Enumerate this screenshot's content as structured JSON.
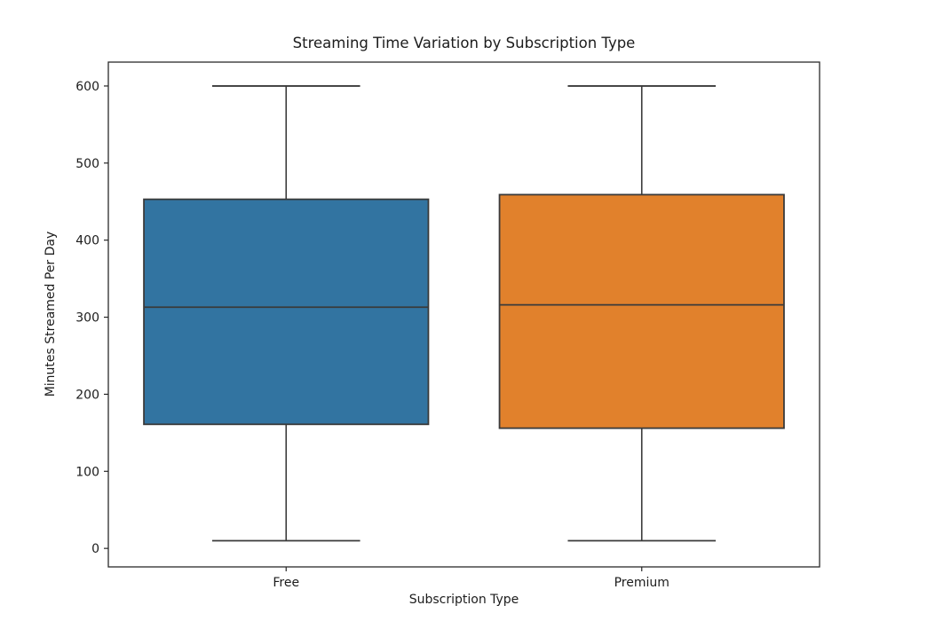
{
  "figure": {
    "background": "#ffffff"
  },
  "chart_data": {
    "type": "boxplot",
    "title": "Streaming Time Variation by Subscription Type",
    "xlabel": "Subscription Type",
    "ylabel": "Minutes Streamed Per Day",
    "categories": [
      "Free",
      "Premium"
    ],
    "series": [
      {
        "name": "Free",
        "whislo": 10,
        "q1": 161,
        "med": 313,
        "q3": 453,
        "whishi": 600,
        "fliers": [],
        "color": "#3274a1"
      },
      {
        "name": "Premium",
        "whislo": 10,
        "q1": 156,
        "med": 316,
        "q3": 459,
        "whishi": 600,
        "fliers": [],
        "color": "#e1812c"
      }
    ],
    "yticks": [
      0,
      100,
      200,
      300,
      400,
      500,
      600
    ],
    "ylim": [
      -24,
      631
    ],
    "grid": false,
    "legend": "none",
    "edge_color": "#3a3a3a",
    "spine_color": "#2b2b2b",
    "tick_color": "#262626"
  }
}
